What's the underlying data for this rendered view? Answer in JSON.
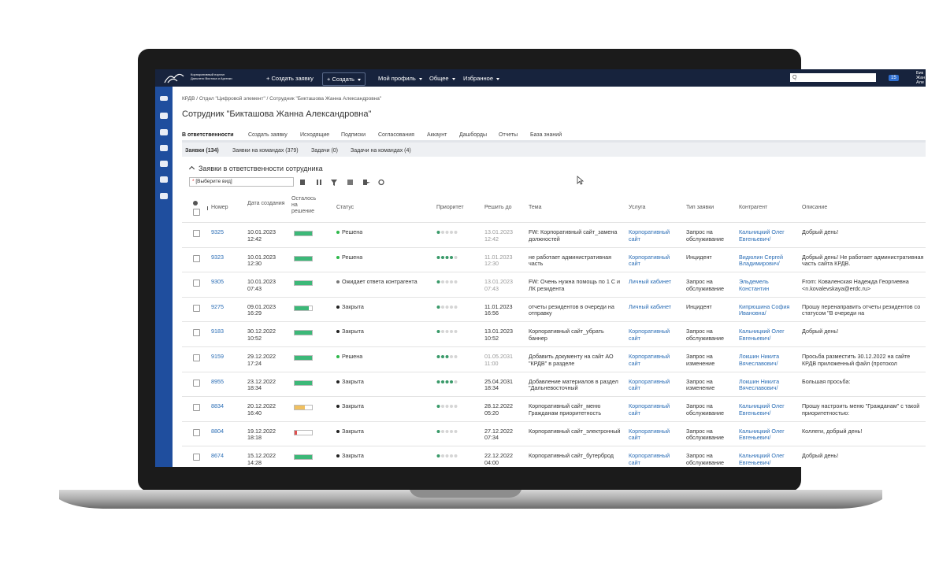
{
  "header": {
    "logo_lines": [
      "Корпоративный портал",
      "Дальнего Востока и Арктики"
    ],
    "nav": [
      "+ Создать заявку",
      "+ Создать",
      "Мой профиль",
      "Общее",
      "Избранное"
    ],
    "search_icon": "Q",
    "notifications": "15",
    "user_lines": [
      "Бик",
      "Жан",
      "Але"
    ]
  },
  "breadcrumb": "КРДВ / Отдел \"Цифровой элемент\" / Сотрудник \"Бикташова Жанна Александровна\"",
  "title": "Сотрудник \"Бикташова Жанна Александровна\"",
  "tabs": [
    "В ответственности",
    "Создать заявку",
    "Исходящие",
    "Подписки",
    "Согласования",
    "Аккаунт",
    "Дашборды",
    "Отчеты",
    "База знаний"
  ],
  "subtabs": [
    "Заявки (134)",
    "Заявки на командах (379)",
    "Задачи (0)",
    "Задачи на командах (4)"
  ],
  "section_title": "Заявки в ответственности сотрудника",
  "view_select": "[Выберите вид]",
  "table": {
    "columns": [
      "Номер",
      "Дата создания",
      "Осталось на решение",
      "Статус",
      "Приоритет",
      "Решить до",
      "Тема",
      "Услуга",
      "Тип заявки",
      "Контрагент",
      "Описание"
    ],
    "rows": [
      {
        "number": "9325",
        "created": "10.01.2023 12:42",
        "remaining": 1,
        "remaining_color": "#3cb878",
        "status": "Решена",
        "status_color": "#2eb84a",
        "priority": 1,
        "deadline": "13.01.2023 12:42",
        "deadline_muted": true,
        "topic": "FW: Корпоративный сайт_замена должностей",
        "service": "Корпоративный сайт",
        "type": "Запрос на обслуживание",
        "contractor": "Кальницкий Олег Евгеньевич/",
        "description": "Добрый день!"
      },
      {
        "number": "9323",
        "created": "10.01.2023 12:30",
        "remaining": 1,
        "remaining_color": "#3cb878",
        "status": "Решена",
        "status_color": "#2eb84a",
        "priority": 4,
        "deadline": "11.01.2023 12:30",
        "deadline_muted": true,
        "topic": "не работает административная часть",
        "service": "Корпоративный сайт",
        "type": "Инцидент",
        "contractor": "Видюлин Сергей Владимирович/",
        "description": "Добрый день! Не работает административная часть сайта КРДВ."
      },
      {
        "number": "9305",
        "created": "10.01.2023 07:43",
        "remaining": 1,
        "remaining_color": "#3cb878",
        "status": "Ожидает ответа контрагента",
        "status_color": "#777777",
        "priority": 1,
        "deadline": "13.01.2023 07:43",
        "deadline_muted": true,
        "topic": "FW: Очень нужна помощь по 1 С и ЛК резидента",
        "service": "Личный кабинет",
        "type": "Запрос на обслуживание",
        "contractor": "Эльдемель Константин",
        "description": "From: Коваленская Надежда Георгиевна <n.kovalevskaya@erdc.ru>"
      },
      {
        "number": "9275",
        "created": "09.01.2023 16:29",
        "remaining": 0.8,
        "remaining_color": "#3cb878",
        "status": "Закрыта",
        "status_color": "#222222",
        "priority": 1,
        "deadline": "11.01.2023 16:56",
        "deadline_muted": false,
        "topic": "отчеты резидентов в очереди на отправку",
        "service": "Личный кабинет",
        "type": "Инцидент",
        "contractor": "Кипрюшина София Ивановна/",
        "description": "Прошу перенаправить отчеты резидентов со статусом \"В очереди на"
      },
      {
        "number": "9183",
        "created": "30.12.2022 10:52",
        "remaining": 1,
        "remaining_color": "#3cb878",
        "status": "Закрыта",
        "status_color": "#222222",
        "priority": 1,
        "deadline": "13.01.2023 10:52",
        "deadline_muted": false,
        "topic": "Корпоративный сайт_убрать баннер",
        "service": "Корпоративный сайт",
        "type": "Запрос на обслуживание",
        "contractor": "Кальницкий Олег Евгеньевич/",
        "description": "Добрый день!"
      },
      {
        "number": "9159",
        "created": "29.12.2022 17:24",
        "remaining": 1,
        "remaining_color": "#3cb878",
        "status": "Решена",
        "status_color": "#2eb84a",
        "priority": 3,
        "deadline": "01.05.2031 11:00",
        "deadline_muted": true,
        "topic": "Добавить документу на сайт АО \"КРДВ\" в разделе",
        "service": "Корпоративный сайт",
        "type": "Запрос на изменение",
        "contractor": "Локшин Никита Вячеславович/",
        "description": "Просьба разместить 30.12.2022 на сайте КРДВ приложенный файл (протокол"
      },
      {
        "number": "8955",
        "created": "23.12.2022 18:34",
        "remaining": 1,
        "remaining_color": "#3cb878",
        "status": "Закрыта",
        "status_color": "#222222",
        "priority": 4,
        "deadline": "25.04.2031 18:34",
        "deadline_muted": false,
        "topic": "Добавление материалов в раздел \"Дальневосточный",
        "service": "Корпоративный сайт",
        "type": "Запрос на изменение",
        "contractor": "Локшин Никита Вячеславович/",
        "description": "Большая просьба:"
      },
      {
        "number": "8834",
        "created": "20.12.2022 16:40",
        "remaining": 0.6,
        "remaining_color": "#f0c060",
        "status": "Закрыта",
        "status_color": "#222222",
        "priority": 1,
        "deadline": "28.12.2022 05:20",
        "deadline_muted": false,
        "topic": "Корпоративный сайт_меню Гражданам приоритетность",
        "service": "Корпоративный сайт",
        "type": "Запрос на обслуживание",
        "contractor": "Кальницкий Олег Евгеньевич/",
        "description": "Прошу настроить меню \"Гражданам\" с такой приоритетностью:"
      },
      {
        "number": "8804",
        "created": "19.12.2022 18:18",
        "remaining": 0.15,
        "remaining_color": "#e05050",
        "status": "Закрыта",
        "status_color": "#222222",
        "priority": 1,
        "deadline": "27.12.2022 07:34",
        "deadline_muted": false,
        "topic": "Корпоративный сайт_электронный",
        "service": "Корпоративный сайт",
        "type": "Запрос на обслуживание",
        "contractor": "Кальницкий Олег Евгеньевич/",
        "description": "Коллеги, добрый день!"
      },
      {
        "number": "8674",
        "created": "15.12.2022 14:28",
        "remaining": 1,
        "remaining_color": "#3cb878",
        "status": "Закрыта",
        "status_color": "#222222",
        "priority": 1,
        "deadline": "22.12.2022 04:00",
        "deadline_muted": false,
        "topic": "Корпоративный сайт_бутерброд",
        "service": "Корпоративный сайт",
        "type": "Запрос на обслуживание",
        "contractor": "Кальницкий Олег Евгеньевич/",
        "description": "Добрый день!"
      }
    ]
  }
}
